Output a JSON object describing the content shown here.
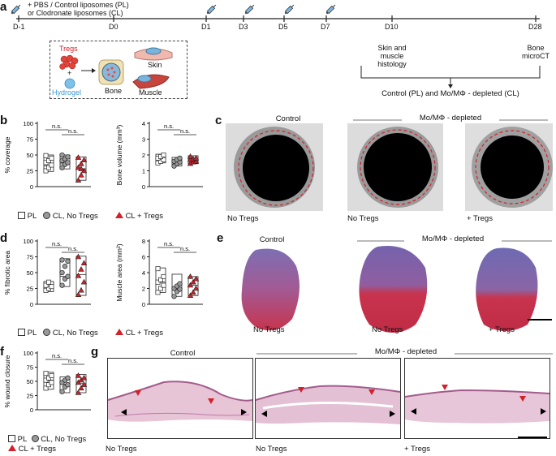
{
  "panels": [
    "a",
    "b",
    "c",
    "d",
    "e",
    "f",
    "g"
  ],
  "timeline": {
    "injection_text_1": "+ PBS / Control liposomes (PL)",
    "injection_text_2": "or Clodronate liposomes (CL)",
    "days": [
      "D-1",
      "D0",
      "D1",
      "D3",
      "D5",
      "D7",
      "D10",
      "D28"
    ],
    "d10_label_1": "Skin and",
    "d10_label_2": "muscle",
    "d10_label_3": "histology",
    "d28_label_1": "Bone",
    "d28_label_2": "microCT",
    "bracket_label": "Control (PL) and Mo/MΦ - depleted (CL)",
    "inset_tregs": "Tregs",
    "inset_plus": "+",
    "inset_hydrogel": "Hydrogel",
    "inset_bone": "Bone",
    "inset_skin": "Skin",
    "inset_muscle": "Muscle"
  },
  "groups": [
    "PL",
    "CL, No Tregs",
    "CL + Tregs"
  ],
  "ns_label": "n.s.",
  "labels": {
    "control": "Control",
    "depleted": "Mo/MΦ - depleted",
    "no_tregs": "No Tregs",
    "plus_tregs": "+ Tregs"
  },
  "colors": {
    "red": "#d32029",
    "grey": "#9a9a9a",
    "open": "#ffffff"
  },
  "chart_data": [
    {
      "id": "coverage",
      "type": "scatter",
      "ylabel": "% coverage",
      "ylim": [
        0,
        100
      ],
      "yticks": [
        0,
        25,
        50,
        75,
        100
      ],
      "groups": [
        "PL",
        "CL, No Tregs",
        "CL + Tregs"
      ],
      "series": [
        {
          "name": "PL",
          "values": [
            25,
            30,
            34,
            38,
            41,
            45,
            49
          ]
        },
        {
          "name": "CL, No Tregs",
          "values": [
            30,
            35,
            38,
            41,
            44,
            47,
            50
          ]
        },
        {
          "name": "CL + Tregs",
          "values": [
            10,
            18,
            25,
            30,
            36,
            42,
            46,
            28
          ]
        }
      ],
      "box": [
        [
          24,
          33,
          50
        ],
        [
          28,
          36,
          50
        ],
        [
          10,
          28,
          47
        ]
      ]
    },
    {
      "id": "bone_volume",
      "type": "scatter",
      "ylabel": "Bone volume (mm³)",
      "ylim": [
        0,
        4
      ],
      "yticks": [
        0,
        1,
        2,
        3,
        4
      ],
      "groups": [
        "PL",
        "CL, No Tregs",
        "CL + Tregs"
      ],
      "series": [
        {
          "name": "PL",
          "values": [
            1.5,
            1.6,
            1.7,
            1.8,
            1.9,
            2.0
          ]
        },
        {
          "name": "CL, No Tregs",
          "values": [
            1.3,
            1.45,
            1.55,
            1.6,
            1.7,
            1.8
          ]
        },
        {
          "name": "CL + Tregs",
          "values": [
            1.45,
            1.55,
            1.6,
            1.7,
            1.75,
            1.8,
            1.9
          ]
        }
      ],
      "box": [
        [
          1.5,
          1.75,
          2.05
        ],
        [
          1.3,
          1.6,
          1.85
        ],
        [
          1.45,
          1.7,
          1.95
        ]
      ]
    },
    {
      "id": "fibrotic_area",
      "type": "scatter",
      "ylabel": "% fibrotic area",
      "ylim": [
        0,
        100
      ],
      "yticks": [
        0,
        25,
        50,
        75,
        100
      ],
      "groups": [
        "PL",
        "CL, No Tregs",
        "CL + Tregs"
      ],
      "series": [
        {
          "name": "PL",
          "values": [
            22,
            25,
            28,
            30,
            35
          ]
        },
        {
          "name": "CL, No Tregs",
          "values": [
            30,
            40,
            44,
            50,
            60,
            68,
            70
          ]
        },
        {
          "name": "CL + Tregs",
          "values": [
            15,
            22,
            35,
            45,
            55,
            65,
            75
          ]
        }
      ],
      "box": [
        [
          20,
          27,
          36
        ],
        [
          28,
          44,
          72
        ],
        [
          14,
          47,
          76
        ]
      ]
    },
    {
      "id": "muscle_area",
      "type": "scatter",
      "ylabel": "Muscle area (mm²)",
      "ylim": [
        0,
        8
      ],
      "yticks": [
        0,
        2,
        4,
        6,
        8
      ],
      "groups": [
        "PL",
        "CL, No Tregs",
        "CL + Tregs"
      ],
      "series": [
        {
          "name": "PL",
          "values": [
            1.5,
            2.0,
            2.4,
            2.8,
            3.1,
            3.5,
            4.5
          ]
        },
        {
          "name": "CL, No Tregs",
          "values": [
            1.0,
            1.6,
            1.9,
            2.0,
            2.3,
            2.6
          ]
        },
        {
          "name": "CL + Tregs",
          "values": [
            1.1,
            1.5,
            2.0,
            2.4,
            2.8,
            3.2,
            3.5
          ]
        }
      ],
      "box": [
        [
          1.5,
          2.8,
          4.6
        ],
        [
          1.0,
          1.9,
          3.8
        ],
        [
          1.1,
          2.4,
          3.5
        ]
      ]
    },
    {
      "id": "wound_closure",
      "type": "scatter",
      "ylabel": "% wound closure",
      "ylim": [
        0,
        100
      ],
      "yticks": [
        0,
        25,
        50,
        75,
        100
      ],
      "groups": [
        "PL",
        "CL, No Tregs",
        "CL + Tregs"
      ],
      "series": [
        {
          "name": "PL",
          "values": [
            38,
            44,
            48,
            52,
            56,
            60,
            64
          ]
        },
        {
          "name": "CL, No Tregs",
          "values": [
            32,
            40,
            44,
            48,
            52,
            56
          ]
        },
        {
          "name": "CL + Tregs",
          "values": [
            30,
            38,
            44,
            48,
            52,
            56,
            60
          ]
        }
      ],
      "box": [
        [
          36,
          52,
          66
        ],
        [
          30,
          45,
          58
        ],
        [
          30,
          46,
          62
        ]
      ]
    }
  ]
}
